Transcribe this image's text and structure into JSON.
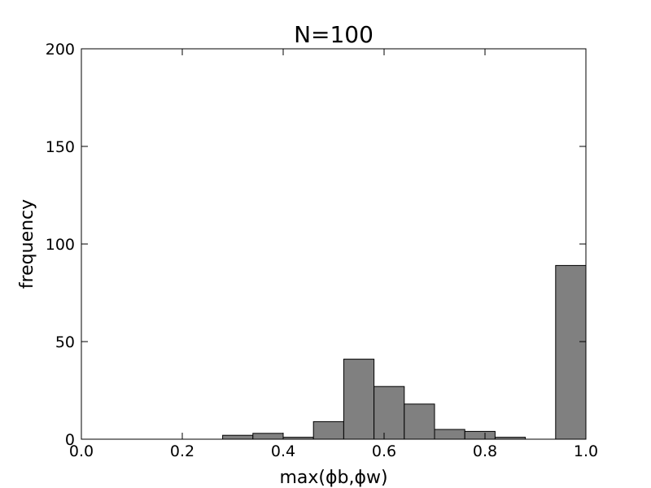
{
  "chart_data": {
    "type": "histogram",
    "title": "N=100",
    "xlabel": "max(ϕb,ϕw)",
    "ylabel": "frequency",
    "bins": [
      0.28,
      0.34,
      0.4,
      0.46,
      0.52,
      0.58,
      0.64,
      0.7,
      0.76,
      0.82,
      0.88,
      0.94,
      1.0
    ],
    "values": [
      2,
      3,
      1,
      9,
      41,
      27,
      18,
      5,
      4,
      1,
      0,
      89
    ],
    "color": "#808080",
    "xlim": [
      0,
      1
    ],
    "xticks": [
      {
        "value": 0,
        "label": "0.0"
      },
      0.2,
      0.4,
      0.6,
      0.8,
      {
        "value": 1,
        "label": "1.0"
      }
    ],
    "ylim": [
      0,
      200
    ],
    "yticks": [
      0,
      50,
      100,
      150,
      200
    ],
    "grid": false
  }
}
